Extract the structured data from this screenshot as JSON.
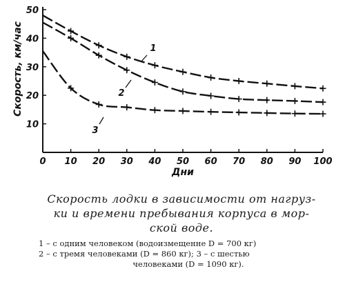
{
  "chart_data": {
    "type": "line",
    "xlabel": "Дни",
    "ylabel": "Скорость, км/час",
    "xlim": [
      0,
      100
    ],
    "ylim": [
      0,
      50
    ],
    "x_ticks": [
      0,
      10,
      20,
      30,
      40,
      50,
      60,
      70,
      80,
      90,
      100
    ],
    "y_ticks": [
      10,
      20,
      30,
      40,
      50
    ],
    "grid": false,
    "series": [
      {
        "name": "1",
        "x": [
          0,
          10,
          20,
          30,
          40,
          50,
          60,
          70,
          80,
          90,
          100
        ],
        "y": [
          48,
          42.5,
          37.5,
          33.5,
          30.5,
          28.2,
          26.2,
          25,
          24.1,
          23.2,
          22.4
        ]
      },
      {
        "name": "2",
        "x": [
          0,
          10,
          20,
          30,
          40,
          50,
          60,
          70,
          80,
          90,
          100
        ],
        "y": [
          45.5,
          40,
          34,
          28.8,
          24.5,
          21.3,
          19.8,
          18.7,
          18.3,
          18,
          17.6
        ]
      },
      {
        "name": "3",
        "x": [
          0,
          10,
          20,
          30,
          40,
          50,
          60,
          70,
          80,
          90,
          100
        ],
        "y": [
          35.5,
          22.5,
          16.8,
          15.8,
          14.8,
          14.5,
          14.2,
          14,
          13.8,
          13.6,
          13.5
        ]
      }
    ]
  },
  "caption": {
    "line1": "Скорость лодки в зависимости от нагруз-",
    "line2": "ки и времени пребывания корпуса в мор-",
    "line3": "ской воде."
  },
  "legend": {
    "line1": "1 – с одним человеком (водоизмещенне D = 700 кг)",
    "line2": "2 – с тремя человеками (D = 860 кг); 3 – с шестью",
    "line3": "человеками (D = 1090 кг)."
  }
}
